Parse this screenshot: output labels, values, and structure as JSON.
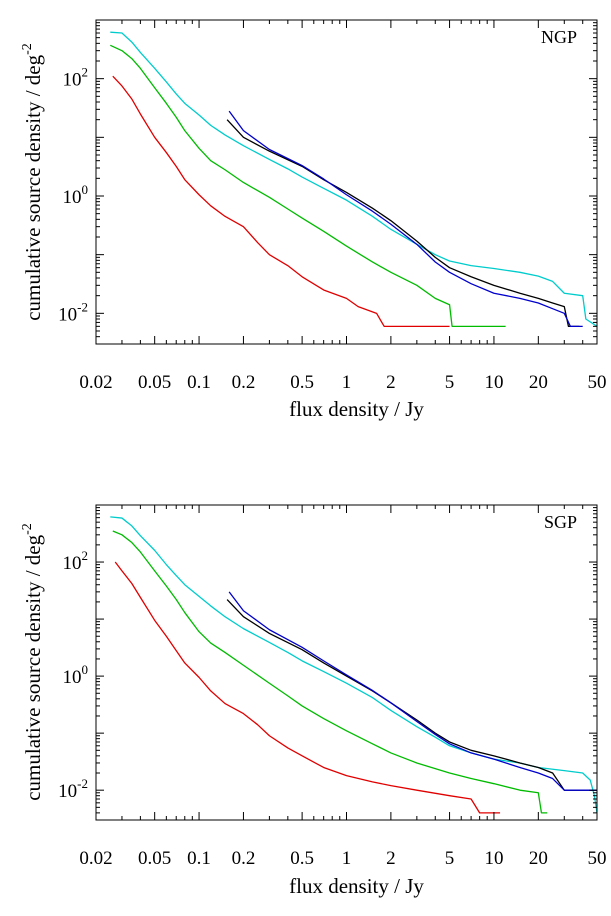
{
  "chart_data": [
    {
      "type": "line",
      "panel_label": "NGP",
      "xlabel": "flux density / Jy",
      "ylabel": "cumulative source density / deg",
      "ylabel_exponent": "-2",
      "x_scale": "log",
      "y_scale": "log",
      "xlim": [
        0.02,
        50
      ],
      "ylim": [
        0.003,
        1000
      ],
      "xticks": [
        {
          "value": 0.02,
          "label": "0.02"
        },
        {
          "value": 0.05,
          "label": "0.05"
        },
        {
          "value": 0.1,
          "label": "0.1"
        },
        {
          "value": 0.2,
          "label": "0.2"
        },
        {
          "value": 0.5,
          "label": "0.5"
        },
        {
          "value": 1,
          "label": "1"
        },
        {
          "value": 2,
          "label": "2"
        },
        {
          "value": 5,
          "label": "5"
        },
        {
          "value": 10,
          "label": "10"
        },
        {
          "value": 20,
          "label": "20"
        },
        {
          "value": 50,
          "label": "50"
        }
      ],
      "yticks": [
        {
          "value": 0.01,
          "base": "10",
          "exp": "-2"
        },
        {
          "value": 1,
          "base": "10",
          "exp": "0"
        },
        {
          "value": 100,
          "base": "10",
          "exp": "2"
        }
      ],
      "series": [
        {
          "color": "#00cccc",
          "points": [
            [
              0.025,
              620
            ],
            [
              0.03,
              600
            ],
            [
              0.035,
              420
            ],
            [
              0.04,
              280
            ],
            [
              0.05,
              150
            ],
            [
              0.06,
              88
            ],
            [
              0.07,
              55
            ],
            [
              0.08,
              38
            ],
            [
              0.1,
              24
            ],
            [
              0.12,
              16
            ],
            [
              0.15,
              11
            ],
            [
              0.2,
              7.2
            ],
            [
              0.3,
              4.2
            ],
            [
              0.4,
              2.9
            ],
            [
              0.5,
              2.1
            ],
            [
              0.7,
              1.35
            ],
            [
              1,
              0.85
            ],
            [
              1.5,
              0.45
            ],
            [
              2,
              0.27
            ],
            [
              3,
              0.15
            ],
            [
              4,
              0.1
            ],
            [
              5,
              0.078
            ],
            [
              7,
              0.065
            ],
            [
              10,
              0.058
            ],
            [
              15,
              0.05
            ],
            [
              20,
              0.043
            ],
            [
              25,
              0.035
            ],
            [
              30,
              0.022
            ],
            [
              40,
              0.02
            ],
            [
              42,
              0.008
            ],
            [
              50,
              0.006
            ]
          ]
        },
        {
          "color": "#00bb00",
          "points": [
            [
              0.025,
              370
            ],
            [
              0.03,
              300
            ],
            [
              0.035,
              220
            ],
            [
              0.04,
              150
            ],
            [
              0.05,
              70
            ],
            [
              0.06,
              38
            ],
            [
              0.07,
              22
            ],
            [
              0.08,
              13
            ],
            [
              0.1,
              6.5
            ],
            [
              0.12,
              4
            ],
            [
              0.15,
              2.8
            ],
            [
              0.2,
              1.7
            ],
            [
              0.3,
              0.95
            ],
            [
              0.4,
              0.6
            ],
            [
              0.5,
              0.42
            ],
            [
              0.7,
              0.25
            ],
            [
              1,
              0.14
            ],
            [
              1.5,
              0.075
            ],
            [
              2,
              0.05
            ],
            [
              3,
              0.03
            ],
            [
              4,
              0.018
            ],
            [
              5,
              0.014
            ],
            [
              5.2,
              0.006
            ],
            [
              12,
              0.006
            ]
          ]
        },
        {
          "color": "#e00000",
          "points": [
            [
              0.026,
              110
            ],
            [
              0.03,
              75
            ],
            [
              0.035,
              45
            ],
            [
              0.04,
              25
            ],
            [
              0.05,
              10
            ],
            [
              0.06,
              5.5
            ],
            [
              0.07,
              3.2
            ],
            [
              0.08,
              1.9
            ],
            [
              0.1,
              1.05
            ],
            [
              0.12,
              0.68
            ],
            [
              0.15,
              0.45
            ],
            [
              0.2,
              0.3
            ],
            [
              0.25,
              0.16
            ],
            [
              0.3,
              0.1
            ],
            [
              0.4,
              0.065
            ],
            [
              0.5,
              0.042
            ],
            [
              0.7,
              0.025
            ],
            [
              1,
              0.018
            ],
            [
              1.2,
              0.013
            ],
            [
              1.6,
              0.01
            ],
            [
              1.8,
              0.006
            ],
            [
              5,
              0.006
            ]
          ]
        },
        {
          "color": "#000000",
          "points": [
            [
              0.155,
              20
            ],
            [
              0.2,
              10
            ],
            [
              0.3,
              5.8
            ],
            [
              0.5,
              3.2
            ],
            [
              0.7,
              1.9
            ],
            [
              1,
              1.15
            ],
            [
              1.5,
              0.62
            ],
            [
              2,
              0.38
            ],
            [
              3,
              0.17
            ],
            [
              4,
              0.09
            ],
            [
              5,
              0.06
            ],
            [
              7,
              0.042
            ],
            [
              10,
              0.03
            ],
            [
              15,
              0.022
            ],
            [
              20,
              0.018
            ],
            [
              25,
              0.015
            ],
            [
              30,
              0.013
            ],
            [
              32,
              0.006
            ],
            [
              38,
              0.006
            ]
          ]
        },
        {
          "color": "#0000cc",
          "points": [
            [
              0.16,
              28
            ],
            [
              0.2,
              13
            ],
            [
              0.3,
              6.2
            ],
            [
              0.5,
              3.3
            ],
            [
              0.7,
              1.95
            ],
            [
              1,
              1.05
            ],
            [
              1.5,
              0.55
            ],
            [
              2,
              0.33
            ],
            [
              3,
              0.15
            ],
            [
              4,
              0.075
            ],
            [
              5,
              0.05
            ],
            [
              7,
              0.032
            ],
            [
              10,
              0.022
            ],
            [
              15,
              0.018
            ],
            [
              20,
              0.015
            ],
            [
              25,
              0.012
            ],
            [
              30,
              0.01
            ],
            [
              33,
              0.006
            ],
            [
              40,
              0.006
            ]
          ]
        }
      ]
    },
    {
      "type": "line",
      "panel_label": "SGP",
      "xlabel": "flux density / Jy",
      "ylabel": "cumulative source density / deg",
      "ylabel_exponent": "-2",
      "x_scale": "log",
      "y_scale": "log",
      "xlim": [
        0.02,
        50
      ],
      "ylim": [
        0.003,
        1000
      ],
      "xticks": [
        {
          "value": 0.02,
          "label": "0.02"
        },
        {
          "value": 0.05,
          "label": "0.05"
        },
        {
          "value": 0.1,
          "label": "0.1"
        },
        {
          "value": 0.2,
          "label": "0.2"
        },
        {
          "value": 0.5,
          "label": "0.5"
        },
        {
          "value": 1,
          "label": "1"
        },
        {
          "value": 2,
          "label": "2"
        },
        {
          "value": 5,
          "label": "5"
        },
        {
          "value": 10,
          "label": "10"
        },
        {
          "value": 20,
          "label": "20"
        },
        {
          "value": 50,
          "label": "50"
        }
      ],
      "yticks": [
        {
          "value": 0.01,
          "base": "10",
          "exp": "-2"
        },
        {
          "value": 1,
          "base": "10",
          "exp": "0"
        },
        {
          "value": 100,
          "base": "10",
          "exp": "2"
        }
      ],
      "series": [
        {
          "color": "#00cccc",
          "points": [
            [
              0.025,
              620
            ],
            [
              0.03,
              590
            ],
            [
              0.035,
              430
            ],
            [
              0.04,
              290
            ],
            [
              0.05,
              160
            ],
            [
              0.06,
              90
            ],
            [
              0.07,
              58
            ],
            [
              0.08,
              40
            ],
            [
              0.1,
              25
            ],
            [
              0.12,
              17
            ],
            [
              0.15,
              11
            ],
            [
              0.2,
              6.8
            ],
            [
              0.3,
              3.9
            ],
            [
              0.4,
              2.6
            ],
            [
              0.5,
              1.85
            ],
            [
              0.7,
              1.2
            ],
            [
              1,
              0.75
            ],
            [
              1.5,
              0.42
            ],
            [
              2,
              0.25
            ],
            [
              3,
              0.13
            ],
            [
              4,
              0.085
            ],
            [
              5,
              0.06
            ],
            [
              7,
              0.045
            ],
            [
              10,
              0.035
            ],
            [
              15,
              0.03
            ],
            [
              20,
              0.025
            ],
            [
              30,
              0.022
            ],
            [
              40,
              0.02
            ],
            [
              45,
              0.015
            ],
            [
              48,
              0.008
            ],
            [
              50,
              0.004
            ]
          ]
        },
        {
          "color": "#00bb00",
          "points": [
            [
              0.026,
              350
            ],
            [
              0.03,
              300
            ],
            [
              0.035,
              220
            ],
            [
              0.04,
              150
            ],
            [
              0.05,
              70
            ],
            [
              0.06,
              38
            ],
            [
              0.07,
              22
            ],
            [
              0.08,
              13
            ],
            [
              0.1,
              6
            ],
            [
              0.12,
              3.8
            ],
            [
              0.15,
              2.6
            ],
            [
              0.2,
              1.55
            ],
            [
              0.3,
              0.75
            ],
            [
              0.4,
              0.45
            ],
            [
              0.5,
              0.3
            ],
            [
              0.7,
              0.18
            ],
            [
              1,
              0.11
            ],
            [
              1.5,
              0.065
            ],
            [
              2,
              0.045
            ],
            [
              3,
              0.03
            ],
            [
              5,
              0.02
            ],
            [
              7,
              0.016
            ],
            [
              10,
              0.013
            ],
            [
              15,
              0.01
            ],
            [
              20,
              0.009
            ],
            [
              21,
              0.004
            ],
            [
              23,
              0.004
            ]
          ]
        },
        {
          "color": "#e00000",
          "points": [
            [
              0.027,
              100
            ],
            [
              0.03,
              70
            ],
            [
              0.035,
              42
            ],
            [
              0.04,
              24
            ],
            [
              0.05,
              9.5
            ],
            [
              0.06,
              5
            ],
            [
              0.07,
              2.8
            ],
            [
              0.08,
              1.7
            ],
            [
              0.1,
              0.95
            ],
            [
              0.12,
              0.55
            ],
            [
              0.15,
              0.33
            ],
            [
              0.2,
              0.22
            ],
            [
              0.25,
              0.14
            ],
            [
              0.3,
              0.09
            ],
            [
              0.4,
              0.055
            ],
            [
              0.5,
              0.04
            ],
            [
              0.7,
              0.025
            ],
            [
              1,
              0.018
            ],
            [
              1.5,
              0.014
            ],
            [
              2,
              0.012
            ],
            [
              3,
              0.01
            ],
            [
              5,
              0.008
            ],
            [
              7,
              0.007
            ],
            [
              8,
              0.004
            ],
            [
              11,
              0.004
            ]
          ]
        },
        {
          "color": "#000000",
          "points": [
            [
              0.155,
              22
            ],
            [
              0.2,
              11
            ],
            [
              0.3,
              5.6
            ],
            [
              0.5,
              2.9
            ],
            [
              0.7,
              1.7
            ],
            [
              1,
              1
            ],
            [
              1.5,
              0.55
            ],
            [
              2,
              0.34
            ],
            [
              3,
              0.17
            ],
            [
              4,
              0.1
            ],
            [
              5,
              0.07
            ],
            [
              7,
              0.05
            ],
            [
              10,
              0.04
            ],
            [
              15,
              0.03
            ],
            [
              20,
              0.025
            ],
            [
              25,
              0.02
            ],
            [
              30,
              0.01
            ],
            [
              50,
              0.01
            ]
          ]
        },
        {
          "color": "#0000cc",
          "points": [
            [
              0.16,
              30
            ],
            [
              0.2,
              14
            ],
            [
              0.3,
              6.5
            ],
            [
              0.5,
              3.2
            ],
            [
              0.7,
              1.85
            ],
            [
              1,
              1.05
            ],
            [
              1.5,
              0.56
            ],
            [
              2,
              0.34
            ],
            [
              3,
              0.16
            ],
            [
              4,
              0.095
            ],
            [
              5,
              0.065
            ],
            [
              7,
              0.045
            ],
            [
              10,
              0.035
            ],
            [
              15,
              0.025
            ],
            [
              20,
              0.02
            ],
            [
              25,
              0.016
            ],
            [
              30,
              0.01
            ],
            [
              50,
              0.01
            ]
          ]
        }
      ]
    }
  ]
}
